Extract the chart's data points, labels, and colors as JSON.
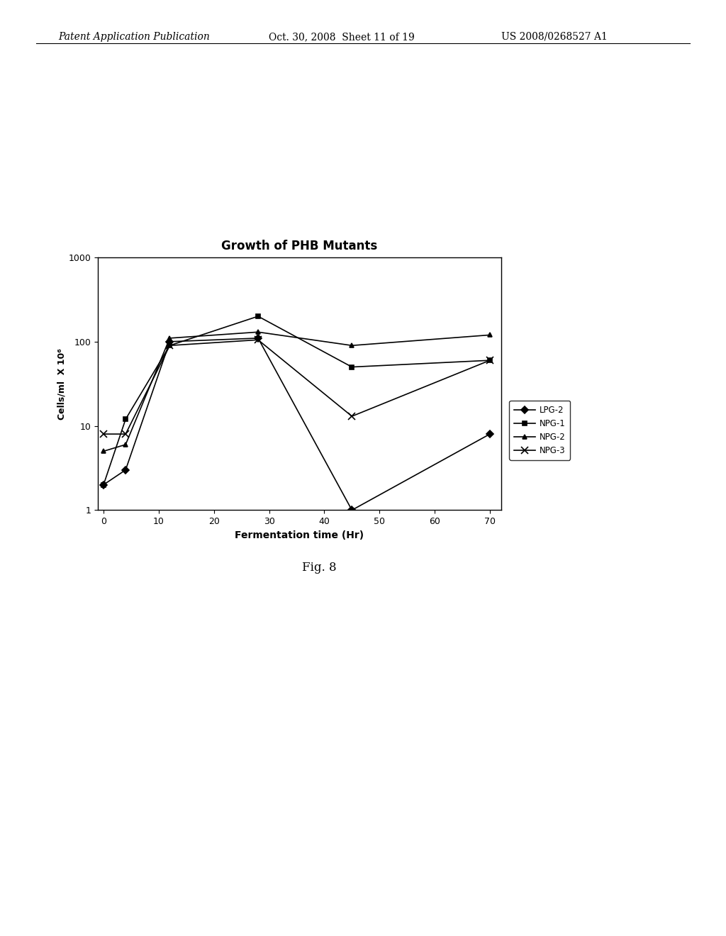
{
  "title": "Growth of PHB Mutants",
  "xlabel": "Fermentation time (Hr)",
  "ylabel": "Cells/ml  X 10⁶",
  "series": [
    {
      "label": "LPG-2",
      "x": [
        0,
        4,
        12,
        28,
        45,
        70
      ],
      "y": [
        2,
        3,
        100,
        110,
        1,
        8
      ],
      "marker": "D",
      "linestyle": "-"
    },
    {
      "label": "NPG-1",
      "x": [
        0,
        4,
        12,
        28,
        45,
        70
      ],
      "y": [
        2,
        12,
        90,
        200,
        50,
        60
      ],
      "marker": "s",
      "linestyle": "-"
    },
    {
      "label": "NPG-2",
      "x": [
        0,
        4,
        12,
        28,
        45,
        70
      ],
      "y": [
        5,
        6,
        110,
        130,
        90,
        120
      ],
      "marker": "^",
      "linestyle": "-"
    },
    {
      "label": "NPG-3",
      "x": [
        0,
        4,
        12,
        28,
        45,
        70
      ],
      "y": [
        8,
        8,
        90,
        105,
        13,
        60
      ],
      "marker": "x",
      "linestyle": "-"
    }
  ],
  "xlim": [
    -1,
    72
  ],
  "ylim_log": [
    1,
    1000
  ],
  "xticks": [
    0,
    10,
    20,
    30,
    40,
    50,
    60,
    70
  ],
  "yticks": [
    1,
    10,
    100,
    1000
  ],
  "color": "black",
  "background_color": "#ffffff",
  "fig_caption": "Fig. 8",
  "header_left": "Patent Application Publication",
  "header_center": "Oct. 30, 2008  Sheet 11 of 19",
  "header_right": "US 2008/0268527 A1"
}
